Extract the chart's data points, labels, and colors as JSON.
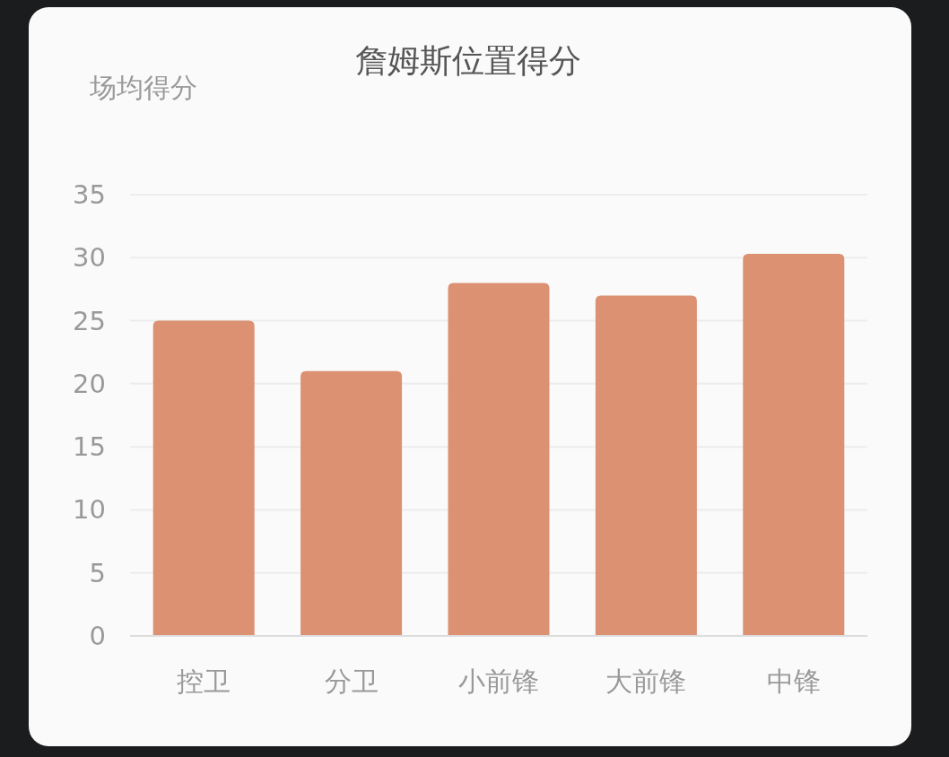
{
  "chart_data": {
    "type": "bar",
    "title": "詹姆斯位置得分",
    "ylabel": "场均得分",
    "categories": [
      "控卫",
      "分卫",
      "小前锋",
      "大前锋",
      "中锋"
    ],
    "values": [
      25,
      21,
      28,
      27,
      30.3
    ],
    "color": "#db9172",
    "ylim": [
      0,
      35
    ],
    "yticks": [
      0,
      5,
      10,
      15,
      20,
      25,
      30,
      35
    ],
    "grid": "y"
  }
}
